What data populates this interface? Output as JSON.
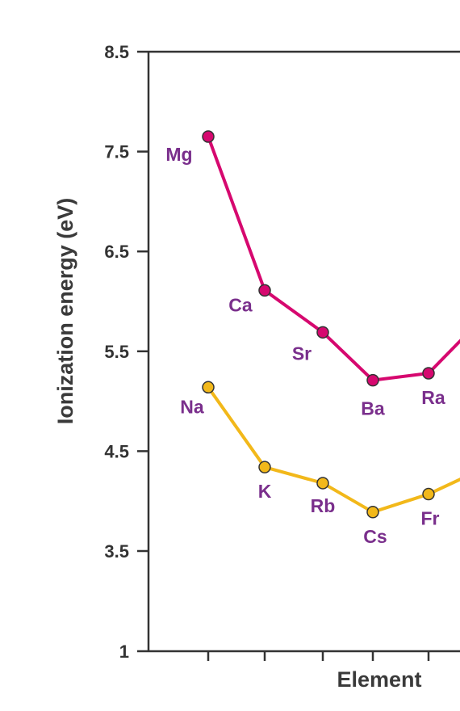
{
  "chart_data": {
    "type": "line",
    "xlabel": "Element",
    "ylabel": "Ionization energy (eV)",
    "y_ticks": [
      "1",
      "3.5",
      "4.5",
      "5.5",
      "6.5",
      "7.5",
      "8.5"
    ],
    "grid": false,
    "series": [
      {
        "color": "#d6086f",
        "points": [
          {
            "label": "Mg",
            "y": 7.65
          },
          {
            "label": "Ca",
            "y": 6.11
          },
          {
            "label": "Sr",
            "y": 5.69
          },
          {
            "label": "Ba",
            "y": 5.21
          },
          {
            "label": "Ra",
            "y": 5.28
          },
          {
            "label": "",
            "y": 5.85
          }
        ]
      },
      {
        "color": "#f2b81a",
        "points": [
          {
            "label": "Na",
            "y": 5.14
          },
          {
            "label": "K",
            "y": 4.34
          },
          {
            "label": "Rb",
            "y": 4.18
          },
          {
            "label": "Cs",
            "y": 3.89
          },
          {
            "label": "Fr",
            "y": 4.07
          },
          {
            "label": "",
            "y": 4.33
          }
        ]
      }
    ]
  }
}
